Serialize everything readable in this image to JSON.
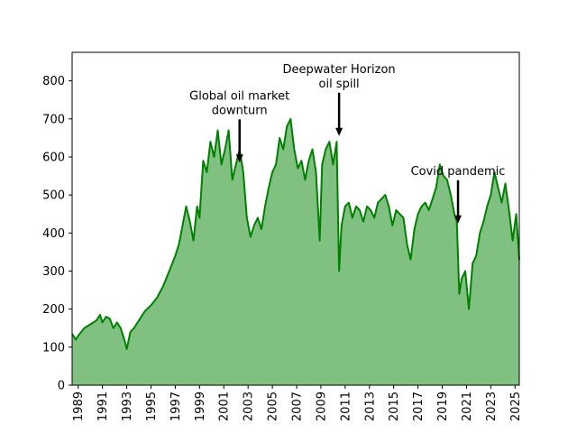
{
  "chart_data": {
    "type": "area",
    "title": "",
    "xlabel": "",
    "ylabel": "",
    "xlim": [
      1988.5,
      2025.35
    ],
    "ylim": [
      0,
      875
    ],
    "grid": false,
    "legend": "none",
    "colors": {
      "line": "#008000",
      "fill": "#80c080"
    },
    "x_ticks": [
      1989,
      1991,
      1993,
      1995,
      1997,
      1999,
      2001,
      2003,
      2005,
      2007,
      2009,
      2011,
      2013,
      2015,
      2017,
      2019,
      2021,
      2023,
      2025
    ],
    "y_ticks": [
      0,
      100,
      200,
      300,
      400,
      500,
      600,
      700,
      800
    ],
    "x_tick_labels": [
      "1989",
      "1991",
      "1993",
      "1995",
      "1997",
      "1999",
      "2001",
      "2003",
      "2005",
      "2007",
      "2009",
      "2011",
      "2013",
      "2015",
      "2017",
      "2019",
      "2021",
      "2023",
      "2025"
    ],
    "y_tick_labels": [
      "0",
      "100",
      "200",
      "300",
      "400",
      "500",
      "600",
      "700",
      "800"
    ],
    "series": [
      {
        "x": [
          1988.5,
          1988.8,
          1989.0,
          1989.5,
          1990.0,
          1990.5,
          1990.8,
          1991.0,
          1991.3,
          1991.6,
          1991.9,
          1992.2,
          1992.5,
          1992.8,
          1993.0,
          1993.3,
          1993.6,
          1994.0,
          1994.5,
          1995.0,
          1995.5,
          1996.0,
          1996.5,
          1997.0,
          1997.3,
          1997.6,
          1997.9,
          1998.2,
          1998.5,
          1998.8,
          1999.0,
          1999.3,
          1999.6,
          1999.9,
          2000.2,
          2000.5,
          2000.8,
          2001.1,
          2001.4,
          2001.7,
          2002.0,
          2002.3,
          2002.6,
          2002.9,
          2003.2,
          2003.5,
          2003.8,
          2004.1,
          2004.4,
          2004.7,
          2005.0,
          2005.3,
          2005.6,
          2005.9,
          2006.2,
          2006.5,
          2006.8,
          2007.1,
          2007.4,
          2007.7,
          2008.0,
          2008.3,
          2008.6,
          2008.9,
          2009.1,
          2009.4,
          2009.7,
          2010.0,
          2010.3,
          2010.5,
          2010.7,
          2011.0,
          2011.3,
          2011.6,
          2011.9,
          2012.2,
          2012.5,
          2012.8,
          2013.1,
          2013.4,
          2013.7,
          2014.0,
          2014.3,
          2014.6,
          2014.9,
          2015.2,
          2015.5,
          2015.8,
          2016.1,
          2016.4,
          2016.7,
          2017.0,
          2017.3,
          2017.6,
          2017.9,
          2018.2,
          2018.5,
          2018.8,
          2019.1,
          2019.4,
          2019.7,
          2020.0,
          2020.2,
          2020.4,
          2020.6,
          2020.9,
          2021.2,
          2021.5,
          2021.8,
          2022.1,
          2022.4,
          2022.7,
          2023.0,
          2023.3,
          2023.6,
          2023.9,
          2024.2,
          2024.5,
          2024.8,
          2025.1,
          2025.35
        ],
        "y": [
          135,
          120,
          130,
          150,
          160,
          170,
          185,
          165,
          180,
          175,
          150,
          165,
          150,
          120,
          95,
          140,
          150,
          170,
          195,
          210,
          230,
          260,
          300,
          340,
          370,
          420,
          470,
          430,
          380,
          470,
          440,
          590,
          560,
          640,
          600,
          670,
          580,
          620,
          670,
          540,
          580,
          620,
          560,
          440,
          390,
          420,
          440,
          410,
          470,
          520,
          560,
          580,
          650,
          620,
          680,
          700,
          620,
          570,
          590,
          540,
          590,
          620,
          560,
          380,
          580,
          620,
          640,
          580,
          640,
          300,
          420,
          470,
          480,
          440,
          470,
          460,
          430,
          470,
          460,
          440,
          480,
          490,
          500,
          470,
          420,
          460,
          450,
          440,
          370,
          330,
          410,
          450,
          470,
          480,
          460,
          490,
          520,
          580,
          550,
          540,
          500,
          450,
          430,
          240,
          280,
          300,
          200,
          320,
          340,
          400,
          430,
          470,
          500,
          560,
          520,
          480,
          530,
          460,
          380,
          450,
          330
        ]
      }
    ],
    "annotations": [
      {
        "lines": [
          "Global oil market",
          "downturn"
        ],
        "x": 2002.3,
        "y": 585
      },
      {
        "lines": [
          "Deepwater Horizon",
          "oil spill"
        ],
        "x": 2010.5,
        "y": 655
      },
      {
        "lines": [
          "Covid pandemic"
        ],
        "x": 2020.3,
        "y": 425
      }
    ]
  }
}
